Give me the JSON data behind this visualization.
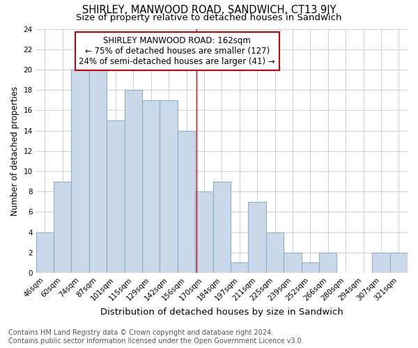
{
  "title": "SHIRLEY, MANWOOD ROAD, SANDWICH, CT13 9JY",
  "subtitle": "Size of property relative to detached houses in Sandwich",
  "xlabel": "Distribution of detached houses by size in Sandwich",
  "ylabel": "Number of detached properties",
  "categories": [
    "46sqm",
    "60sqm",
    "74sqm",
    "87sqm",
    "101sqm",
    "115sqm",
    "129sqm",
    "142sqm",
    "156sqm",
    "170sqm",
    "184sqm",
    "197sqm",
    "211sqm",
    "225sqm",
    "239sqm",
    "252sqm",
    "266sqm",
    "280sqm",
    "294sqm",
    "307sqm",
    "321sqm"
  ],
  "values": [
    4,
    9,
    20,
    20,
    15,
    18,
    17,
    17,
    14,
    8,
    9,
    1,
    7,
    4,
    2,
    1,
    2,
    0,
    0,
    2,
    2
  ],
  "bar_color": "#c9d9ea",
  "bar_edge_color": "#8ab0cc",
  "grid_color": "#c8d0d8",
  "background_color": "#ffffff",
  "annotation_box_text": "SHIRLEY MANWOOD ROAD: 162sqm\n← 75% of detached houses are smaller (127)\n24% of semi-detached houses are larger (41) →",
  "annotation_box_color": "#ffffff",
  "annotation_box_edge_color": "#cc0000",
  "vline_x": 8.57,
  "vline_color": "#cc0000",
  "ylim": [
    0,
    24
  ],
  "yticks": [
    0,
    2,
    4,
    6,
    8,
    10,
    12,
    14,
    16,
    18,
    20,
    22,
    24
  ],
  "footnote": "Contains HM Land Registry data © Crown copyright and database right 2024.\nContains public sector information licensed under the Open Government Licence v3.0.",
  "title_fontsize": 10.5,
  "subtitle_fontsize": 9.5,
  "xlabel_fontsize": 9.5,
  "ylabel_fontsize": 8.5,
  "tick_fontsize": 7.5,
  "annotation_fontsize": 8.5,
  "footnote_fontsize": 7
}
